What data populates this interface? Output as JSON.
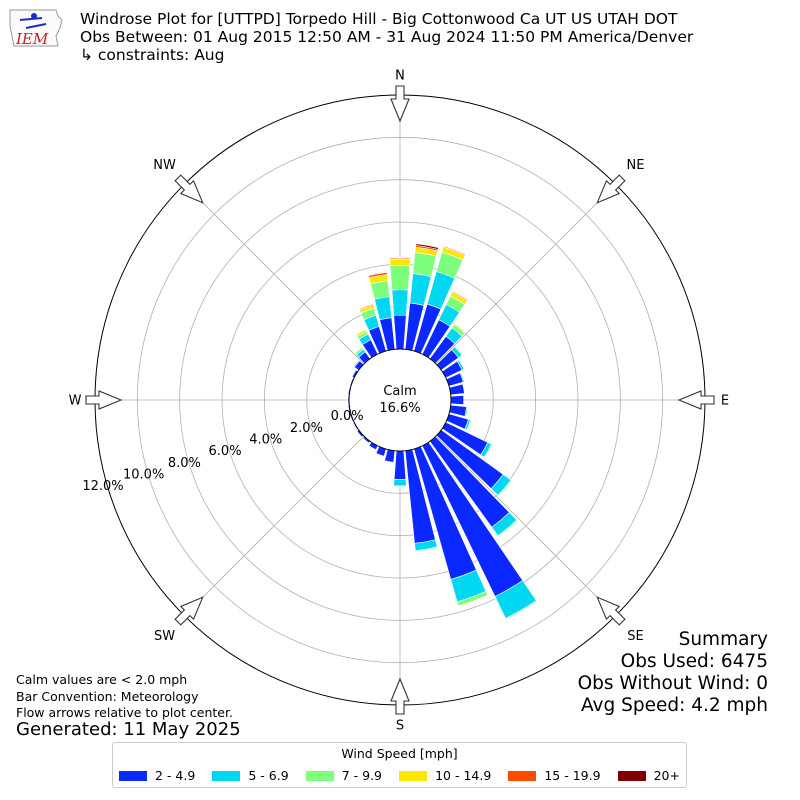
{
  "header": {
    "logo_text": "IEM",
    "title_line1": "Windrose Plot for [UTTPD] Torpedo Hill - Big Cottonwood Ca UT US UTAH DOT",
    "title_line2": "Obs Between: 01 Aug 2015 12:50 AM - 31 Aug 2024 11:50 PM America/Denver",
    "title_line3": "↳ constraints: Aug"
  },
  "notes": {
    "line1": "Calm values are < 2.0 mph",
    "line2": "Bar Convention: Meteorology",
    "line3": "Flow arrows relative to plot center.",
    "generated": "Generated: 11 May 2025"
  },
  "summary": {
    "heading": "Summary",
    "obs_used": "Obs Used: 6475",
    "obs_without_wind": "Obs Without Wind: 0",
    "avg_speed": "Avg Speed: 4.2 mph"
  },
  "legend": {
    "title": "Wind Speed [mph]"
  },
  "chart_data": {
    "type": "windrose",
    "calm_label": "Calm",
    "calm_value": "16.6%",
    "radial_unit": "percent",
    "radial_range": [
      0,
      12.0
    ],
    "radial_ticks": [
      {
        "value": 0,
        "label": "0.0%"
      },
      {
        "value": 2,
        "label": "2.0%"
      },
      {
        "value": 4,
        "label": "4.0%"
      },
      {
        "value": 6,
        "label": "6.0%"
      },
      {
        "value": 8,
        "label": "8.0%"
      },
      {
        "value": 10,
        "label": "10.0%"
      },
      {
        "value": 12,
        "label": "12.0%"
      }
    ],
    "grid": true,
    "legend_position": "bottom",
    "compass": [
      {
        "label": "N",
        "angle": 0
      },
      {
        "label": "NE",
        "angle": 45
      },
      {
        "label": "E",
        "angle": 90
      },
      {
        "label": "SE",
        "angle": 135
      },
      {
        "label": "S",
        "angle": 180
      },
      {
        "label": "SW",
        "angle": 225
      },
      {
        "label": "W",
        "angle": 270
      },
      {
        "label": "NW",
        "angle": 315
      }
    ],
    "speed_bins": [
      {
        "name": "2 - 4.9",
        "color": "#0a28ff"
      },
      {
        "name": "5 - 6.9",
        "color": "#00d8f2"
      },
      {
        "name": "7 - 9.9",
        "color": "#7dff7d"
      },
      {
        "name": "10 - 14.9",
        "color": "#ffe600"
      },
      {
        "name": "15 - 19.9",
        "color": "#ff4a00"
      },
      {
        "name": "20+",
        "color": "#800000"
      }
    ],
    "direction_step": 10,
    "directions": [
      0,
      10,
      20,
      30,
      40,
      50,
      60,
      70,
      80,
      90,
      100,
      110,
      120,
      130,
      140,
      150,
      160,
      170,
      180,
      190,
      200,
      210,
      220,
      230,
      240,
      250,
      260,
      270,
      280,
      290,
      300,
      310,
      320,
      330,
      340,
      350
    ],
    "series": [
      {
        "name": "2 - 4.9",
        "values": [
          1.6,
          2.2,
          2.3,
          1.8,
          1.3,
          1.0,
          0.85,
          0.7,
          0.65,
          0.6,
          0.75,
          0.95,
          2.2,
          3.6,
          5.0,
          7.9,
          6.4,
          4.4,
          1.35,
          0.55,
          0.35,
          0.2,
          0.1,
          0.1,
          0.05,
          0.05,
          0.05,
          0.05,
          0.05,
          0.05,
          0.1,
          0.25,
          0.4,
          0.75,
          1.2,
          1.5
        ]
      },
      {
        "name": "5 - 6.9",
        "values": [
          1.2,
          1.4,
          1.6,
          0.8,
          0.5,
          0.2,
          0.1,
          0.05,
          0.0,
          0.0,
          0.05,
          0.1,
          0.2,
          0.45,
          0.5,
          1.15,
          1.1,
          0.35,
          0.3,
          0.0,
          0.0,
          0.0,
          0.0,
          0.0,
          0.0,
          0.0,
          0.0,
          0.0,
          0.0,
          0.0,
          0.0,
          0.05,
          0.15,
          0.3,
          0.55,
          1.0
        ]
      },
      {
        "name": "7 - 9.9",
        "values": [
          1.15,
          1.0,
          0.95,
          0.45,
          0.2,
          0.05,
          0.0,
          0.0,
          0.0,
          0.0,
          0.0,
          0.05,
          0.05,
          0.05,
          0.05,
          0.05,
          0.2,
          0.05,
          0.0,
          0.0,
          0.0,
          0.0,
          0.0,
          0.0,
          0.0,
          0.0,
          0.0,
          0.0,
          0.0,
          0.0,
          0.0,
          0.0,
          0.1,
          0.15,
          0.35,
          0.75
        ]
      },
      {
        "name": "10 - 14.9",
        "values": [
          0.3,
          0.25,
          0.25,
          0.2,
          0.05,
          0.0,
          0.0,
          0.0,
          0.0,
          0.0,
          0.0,
          0.0,
          0.0,
          0.0,
          0.0,
          0.0,
          0.0,
          0.0,
          0.0,
          0.0,
          0.0,
          0.0,
          0.0,
          0.0,
          0.0,
          0.0,
          0.0,
          0.0,
          0.0,
          0.0,
          0.0,
          0.0,
          0.0,
          0.1,
          0.15,
          0.3
        ]
      },
      {
        "name": "15 - 19.9",
        "values": [
          0.05,
          0.08,
          0.05,
          0.05,
          0.0,
          0.0,
          0.0,
          0.0,
          0.0,
          0.0,
          0.0,
          0.0,
          0.0,
          0.0,
          0.0,
          0.0,
          0.0,
          0.0,
          0.0,
          0.0,
          0.0,
          0.0,
          0.0,
          0.0,
          0.0,
          0.0,
          0.0,
          0.0,
          0.0,
          0.0,
          0.0,
          0.0,
          0.0,
          0.02,
          0.05,
          0.1
        ]
      },
      {
        "name": "20+",
        "values": [
          0.03,
          0.08,
          0.02,
          0.02,
          0.0,
          0.0,
          0.0,
          0.0,
          0.0,
          0.0,
          0.0,
          0.0,
          0.0,
          0.0,
          0.0,
          0.0,
          0.0,
          0.0,
          0.0,
          0.0,
          0.0,
          0.0,
          0.0,
          0.0,
          0.0,
          0.0,
          0.0,
          0.0,
          0.0,
          0.0,
          0.0,
          0.0,
          0.0,
          0.01,
          0.02,
          0.03
        ]
      }
    ]
  }
}
